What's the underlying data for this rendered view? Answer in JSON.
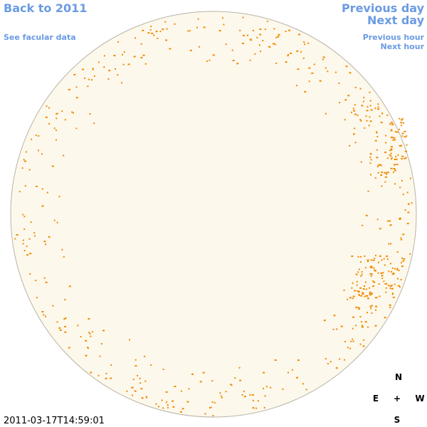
{
  "nav": {
    "back": "Back to 2011",
    "facular": "See facular data",
    "previous_day": "Previous day",
    "next_day": "Next day",
    "previous_hour": "Previous hour",
    "next_hour": "Next hour"
  },
  "compass": {
    "north": "N",
    "east": "E",
    "center": "+",
    "west": "W",
    "south": "S"
  },
  "timestamp": "2011-03-17T14:59:01"
}
